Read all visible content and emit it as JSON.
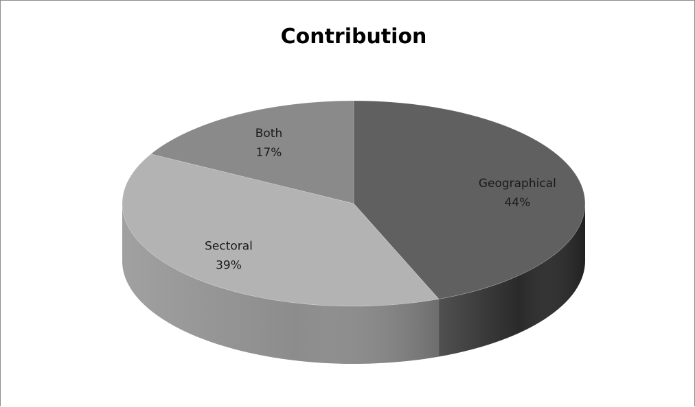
{
  "chart_data": {
    "type": "pie",
    "variant": "3d",
    "title": "Contribution",
    "slices": [
      {
        "label": "Geographical",
        "value": 44,
        "value_label": "44%",
        "top_color": "#606060",
        "side_color": "#2a2a2a"
      },
      {
        "label": "Sectoral",
        "value": 39,
        "value_label": "39%",
        "top_color": "#b3b3b3",
        "side_color": "#8c8c8c"
      },
      {
        "label": "Both",
        "value": 17,
        "value_label": "17%",
        "top_color": "#8a8a8a",
        "side_color": "#6e6e6e"
      }
    ],
    "legend": "none",
    "data_labels": "on slice"
  }
}
